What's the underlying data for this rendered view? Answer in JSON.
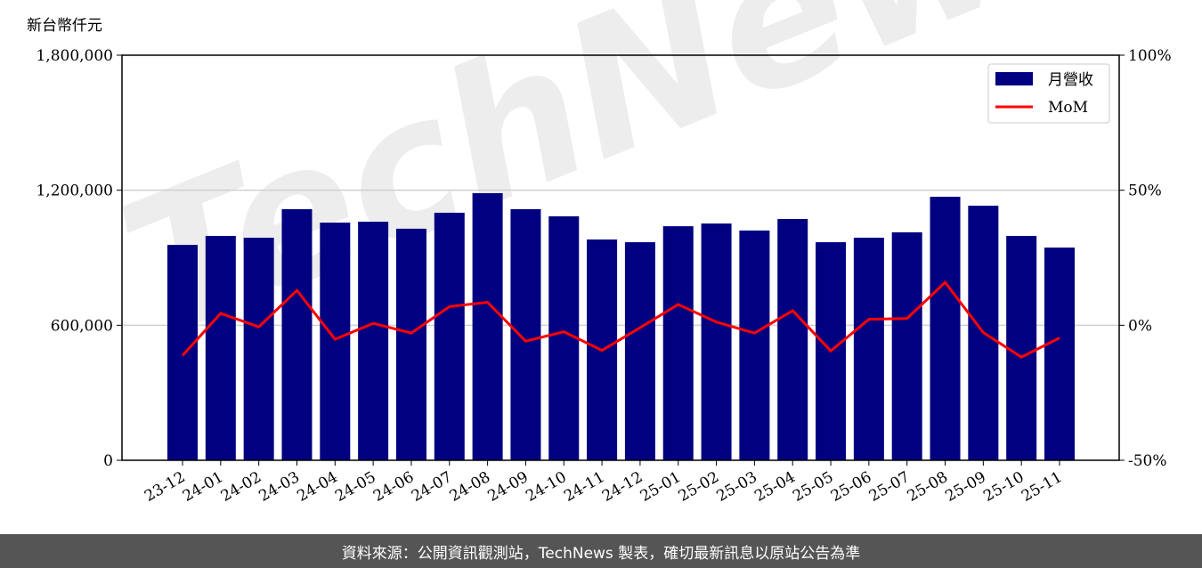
{
  "chart_data": {
    "type": "bar+line",
    "unit_label": "新台幣仟元",
    "categories": [
      "23-12",
      "24-01",
      "24-02",
      "24-03",
      "24-04",
      "24-05",
      "24-06",
      "24-07",
      "24-08",
      "24-09",
      "24-10",
      "24-11",
      "24-12",
      "25-01",
      "25-02",
      "25-03",
      "25-04",
      "25-05",
      "25-06",
      "25-07",
      "25-08",
      "25-09",
      "25-10",
      "25-11"
    ],
    "series": [
      {
        "name": "月營收",
        "type": "bar",
        "axis": "left",
        "color": "#000080",
        "values": [
          957000,
          997000,
          989000,
          1116000,
          1056000,
          1060000,
          1029000,
          1100000,
          1187000,
          1116000,
          1084000,
          981000,
          969000,
          1040000,
          1052000,
          1021000,
          1072000,
          969000,
          989000,
          1013000,
          1171000,
          1131000,
          997000,
          945000
        ]
      },
      {
        "name": "MoM",
        "type": "line",
        "axis": "right",
        "color": "#ff0000",
        "values": [
          -11.2,
          4.4,
          -0.6,
          12.9,
          -5.2,
          0.7,
          -2.9,
          6.9,
          8.5,
          -5.9,
          -2.4,
          -9.3,
          -0.9,
          7.7,
          1.2,
          -2.9,
          5.4,
          -9.5,
          2.2,
          2.5,
          15.9,
          -2.7,
          -11.8,
          -4.7
        ]
      }
    ],
    "left_axis": {
      "ylim": [
        0,
        1800000
      ],
      "ticks": [
        "0",
        "600,000",
        "1,200,000",
        "1,800,000"
      ],
      "tick_values": [
        0,
        600000,
        1200000,
        1800000
      ]
    },
    "right_axis": {
      "ylim": [
        -50,
        100
      ],
      "ticks": [
        "-50%",
        "0%",
        "50%",
        "100%"
      ],
      "tick_values": [
        -50,
        0,
        50,
        100
      ]
    },
    "grid": "horizontal",
    "legend_position": "top-right"
  },
  "watermark": "TechNews",
  "footer": {
    "source_text": "資料來源：公開資訊觀測站，TechNews 製表，確切最新訊息以原站公告為準"
  }
}
